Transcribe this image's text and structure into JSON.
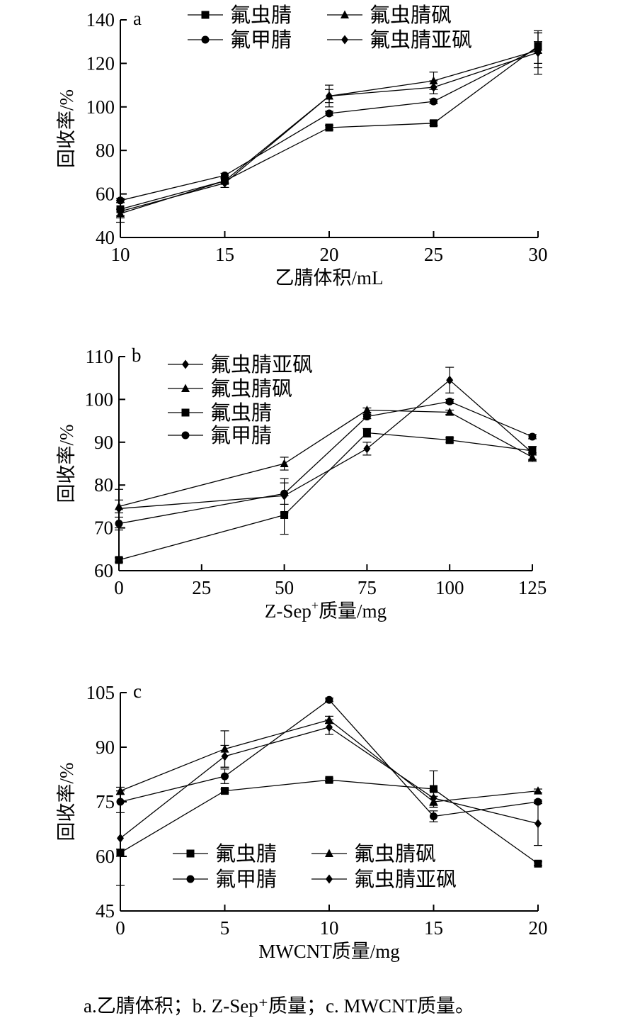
{
  "chart_data": [
    {
      "type": "line",
      "panel": "a",
      "xlabel": "乙腈体积/mL",
      "ylabel": "回收率/%",
      "xlim": [
        10,
        30
      ],
      "ylim": [
        40,
        140
      ],
      "x": [
        10,
        15,
        20,
        25,
        30
      ],
      "xticks": [
        10,
        15,
        20,
        25,
        30
      ],
      "yticks": [
        40,
        60,
        80,
        100,
        120,
        140
      ],
      "series": [
        {
          "name": "氟虫腈",
          "marker": "square",
          "values": [
            53,
            66,
            90.5,
            92.5,
            128
          ],
          "errors": [
            3,
            1,
            1,
            1,
            2
          ]
        },
        {
          "name": "氟虫腈砜",
          "marker": "triangle",
          "values": [
            51,
            66,
            105,
            112,
            126
          ],
          "errors": [
            2,
            1,
            3,
            4,
            8
          ]
        },
        {
          "name": "氟甲腈",
          "marker": "circle",
          "values": [
            57,
            68.5,
            97,
            102.5,
            127
          ],
          "errors": [
            1,
            1,
            1,
            1,
            7
          ]
        },
        {
          "name": "氟虫腈亚砜",
          "marker": "diamond",
          "values": [
            52,
            65,
            105,
            109,
            125
          ],
          "errors": [
            5,
            2,
            5,
            3,
            10
          ]
        }
      ],
      "legend": {
        "layout": "2x2",
        "order": [
          "氟虫腈",
          "氟虫腈砜",
          "氟甲腈",
          "氟虫腈亚砜"
        ]
      }
    },
    {
      "type": "line",
      "panel": "b",
      "xlabel": "Z-Sep+质量/mg",
      "xlabel_main": "Z-Sep",
      "xlabel_sup": "+",
      "xlabel_tail": "质量/mg",
      "ylabel": "回收率/%",
      "xlim": [
        0,
        125
      ],
      "ylim": [
        60,
        110
      ],
      "x": [
        0,
        50,
        75,
        100,
        125
      ],
      "xticks": [
        0,
        25,
        50,
        75,
        100,
        125
      ],
      "yticks": [
        60,
        70,
        80,
        90,
        100,
        110
      ],
      "series": [
        {
          "name": "氟虫腈亚砜",
          "marker": "diamond",
          "values": [
            74.5,
            77.5,
            88.5,
            104.5,
            87.5
          ],
          "errors": [
            4.5,
            4,
            1.5,
            3,
            1.5
          ]
        },
        {
          "name": "氟虫腈砜",
          "marker": "triangle",
          "values": [
            75,
            85,
            97.5,
            97,
            86.5
          ],
          "errors": [
            1.5,
            1.5,
            0.5,
            0.5,
            1
          ]
        },
        {
          "name": "氟虫腈",
          "marker": "square",
          "values": [
            62.5,
            73,
            92.2,
            90.5,
            88
          ],
          "errors": [
            0.5,
            4.5,
            1,
            0.5,
            1
          ]
        },
        {
          "name": "氟甲腈",
          "marker": "circle",
          "values": [
            71,
            78,
            96,
            99.5,
            91.3
          ],
          "errors": [
            1.5,
            2.5,
            0.5,
            0.5,
            0.5
          ]
        }
      ],
      "legend": {
        "layout": "1x4",
        "order": [
          "氟虫腈亚砜",
          "氟虫腈砜",
          "氟虫腈",
          "氟甲腈"
        ]
      }
    },
    {
      "type": "line",
      "panel": "c",
      "xlabel": "MWCNT质量/mg",
      "ylabel": "回收率/%",
      "xlim": [
        0,
        20
      ],
      "ylim": [
        45,
        105
      ],
      "x": [
        0,
        5,
        10,
        15,
        20
      ],
      "xticks": [
        0,
        5,
        10,
        15,
        20
      ],
      "yticks": [
        45,
        60,
        75,
        90,
        105
      ],
      "series": [
        {
          "name": "氟虫腈",
          "marker": "square",
          "values": [
            61,
            78,
            81,
            78.5,
            58
          ],
          "errors": [
            1,
            0.5,
            0.5,
            5,
            0.5
          ]
        },
        {
          "name": "氟虫腈砜",
          "marker": "triangle",
          "values": [
            78,
            89.5,
            97.5,
            75,
            78
          ],
          "errors": [
            1,
            5,
            1,
            1.5,
            0.5
          ]
        },
        {
          "name": "氟甲腈",
          "marker": "circle",
          "values": [
            75,
            82,
            103,
            71,
            75
          ],
          "errors": [
            3,
            2,
            0.5,
            1.5,
            0.5
          ]
        },
        {
          "name": "氟虫腈亚砜",
          "marker": "diamond",
          "values": [
            65,
            87.5,
            95.5,
            76,
            69
          ],
          "errors": [
            13,
            3,
            2,
            2,
            6
          ]
        }
      ],
      "legend": {
        "layout": "2x2",
        "order": [
          "氟虫腈",
          "氟虫腈砜",
          "氟甲腈",
          "氟虫腈亚砜"
        ]
      }
    }
  ],
  "caption": "a.乙腈体积；b. Z-Sep⁺质量；c. MWCNT质量。"
}
